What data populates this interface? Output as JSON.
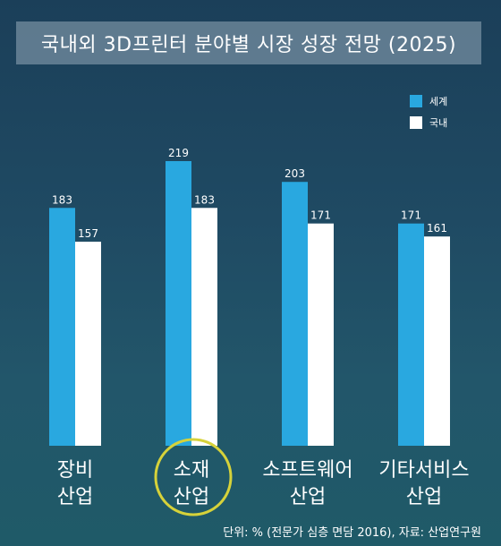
{
  "chart_data": {
    "type": "bar",
    "title": "국내외 3D프린터 분야별 시장 성장 전망 (2025)",
    "categories": [
      [
        "장비",
        "산업"
      ],
      [
        "소재",
        "산업"
      ],
      [
        "소프트웨어",
        "산업"
      ],
      [
        "기타서비스",
        "산업"
      ]
    ],
    "series": [
      {
        "name": "세계",
        "values": [
          183,
          219,
          203,
          171
        ],
        "color": "#29a8e0"
      },
      {
        "name": "국내",
        "values": [
          157,
          183,
          171,
          161
        ],
        "color": "#ffffff"
      }
    ],
    "ylim": [
      0,
      219
    ],
    "legend_position": "top-right",
    "highlight_category_index": 1,
    "highlight_color": "#d6d23a"
  },
  "footer": {
    "source": "단위: % (전문가 심층 면담 2016), 자료: 산업연구원"
  }
}
